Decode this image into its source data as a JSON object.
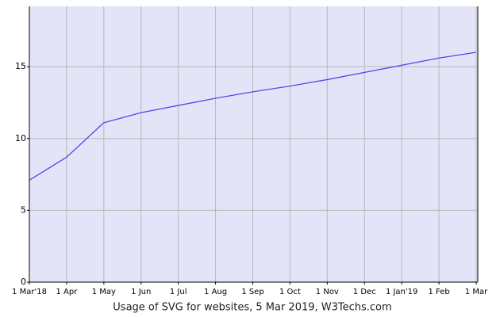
{
  "chart_data": {
    "type": "line",
    "title": "Usage of SVG for websites, 5 Mar 2019, W3Techs.com",
    "categories": [
      "1 Mar'18",
      "1 Apr",
      "1 May",
      "1 Jun",
      "1 Jul",
      "1 Aug",
      "1 Sep",
      "1 Oct",
      "1 Nov",
      "1 Dec",
      "1 Jan'19",
      "1 Feb",
      "1 Mar"
    ],
    "values": [
      7.1,
      8.7,
      11.1,
      11.8,
      12.3,
      12.8,
      13.25,
      13.65,
      14.1,
      14.6,
      15.1,
      15.6,
      16.0
    ],
    "color": "#4c4ce8",
    "ylim": [
      0,
      19.2
    ],
    "yticks": [
      0,
      5,
      10,
      15
    ],
    "grid": true
  }
}
